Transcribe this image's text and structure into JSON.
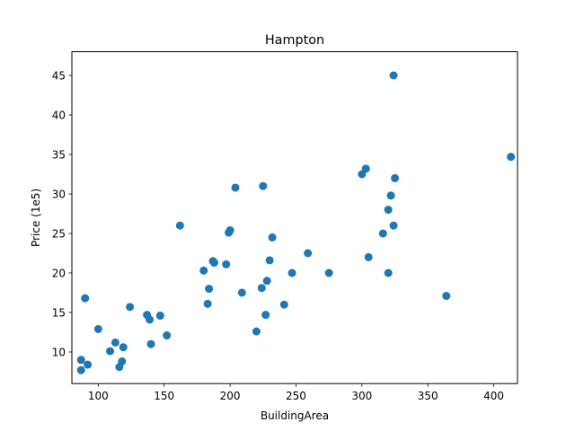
{
  "chart_data": {
    "type": "scatter",
    "title": "Hampton",
    "xlabel": "BuildingArea",
    "ylabel": "Price (1e5)",
    "xlim": [
      80,
      418
    ],
    "ylim": [
      6,
      48
    ],
    "xticks": [
      100,
      150,
      200,
      250,
      300,
      350,
      400
    ],
    "yticks": [
      10,
      15,
      20,
      25,
      30,
      35,
      40,
      45
    ],
    "grid": false,
    "legend": "none",
    "marker_color": "#1f77b4",
    "series": [
      {
        "x": [
          87,
          87,
          92,
          90,
          100,
          109,
          113,
          116,
          118,
          119,
          124,
          137,
          139,
          140,
          147,
          152,
          162,
          180,
          183,
          184,
          187,
          188,
          197,
          199,
          200,
          204,
          209,
          220,
          224,
          225,
          227,
          228,
          230,
          232,
          241,
          247,
          259,
          275,
          300,
          303,
          305,
          316,
          320,
          320,
          322,
          324,
          324,
          325,
          364,
          413
        ],
        "y": [
          7.7,
          9.0,
          8.4,
          16.8,
          12.9,
          10.1,
          11.2,
          8.1,
          8.8,
          10.6,
          15.7,
          14.7,
          14.1,
          11.0,
          14.6,
          12.1,
          26.0,
          20.3,
          16.1,
          18.0,
          21.5,
          21.3,
          21.1,
          25.1,
          25.4,
          30.8,
          17.5,
          12.6,
          18.1,
          31.0,
          14.7,
          19.0,
          21.6,
          24.5,
          16.0,
          20.0,
          22.5,
          20.0,
          32.5,
          33.2,
          22.0,
          25.0,
          28.0,
          20.0,
          29.8,
          45.0,
          26.0,
          32.0,
          17.1,
          34.7
        ]
      }
    ]
  }
}
